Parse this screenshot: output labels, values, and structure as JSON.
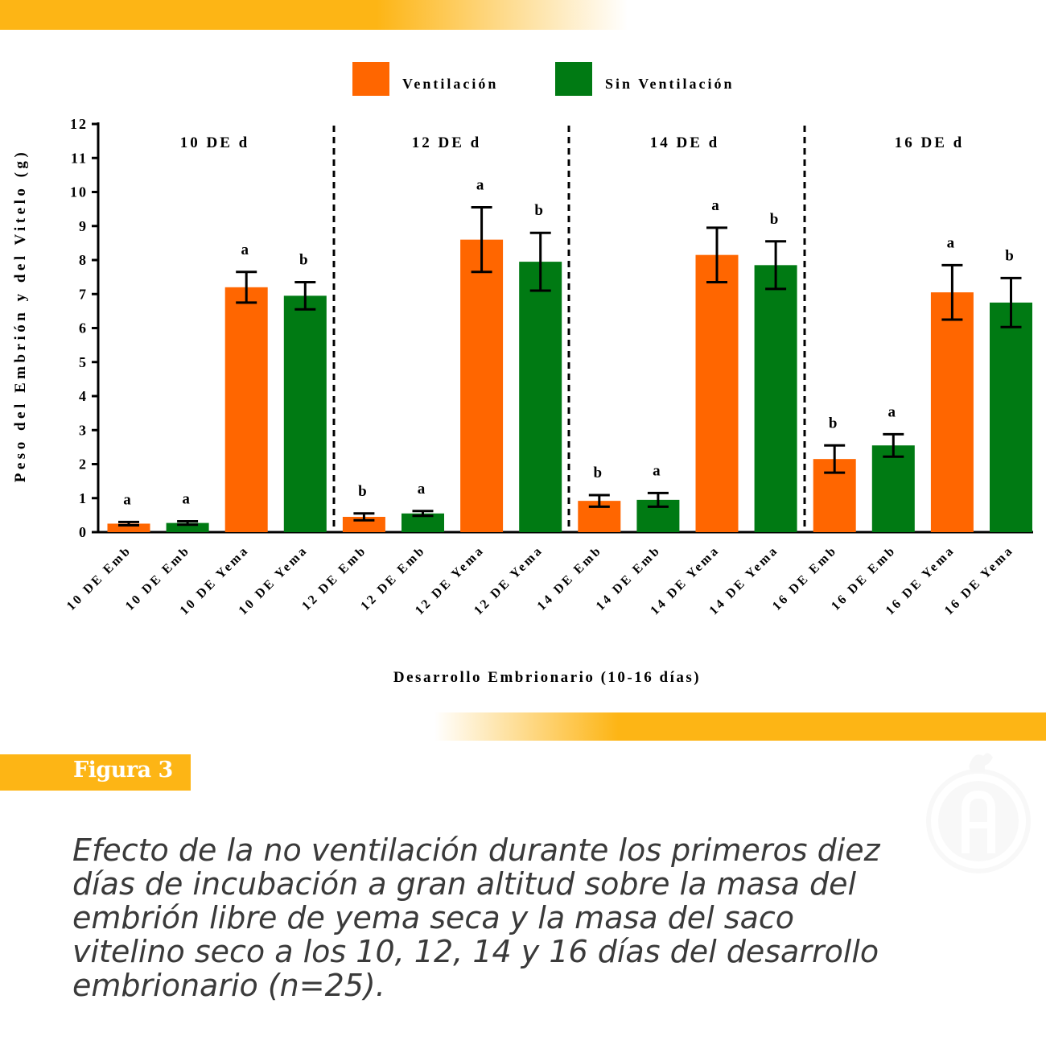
{
  "figure_label": "Figura 3",
  "caption": "Efecto de la no ventilación durante los primeros diez días de incubación a gran altitud sobre la masa del embrión libre de yema seca y la masa del saco vitelino seco a los 10, 12, 14 y 16 días del desarrollo embrionario (n=25).",
  "colors": {
    "accent": "#fdb515",
    "ventilacion": "#ff6600",
    "sin_ventilacion": "#007a13",
    "text": "#3a3a3a"
  },
  "logo_icon": "rooster-letter-a-logo-icon",
  "chart_data": {
    "type": "bar",
    "ylabel": "Peso del Embrión y del Vitelo (g)",
    "xlabel": "Desarrollo Embrionario (10-16 días)",
    "ylim": [
      0,
      12
    ],
    "yticks": [
      0,
      1,
      2,
      3,
      4,
      5,
      6,
      7,
      8,
      9,
      10,
      11,
      12
    ],
    "legend_position": "top",
    "grid": false,
    "legend": [
      {
        "name": "Ventilación",
        "color": "#ff6600"
      },
      {
        "name": "Sin Ventilación",
        "color": "#007a13"
      }
    ],
    "groups": [
      "10 DE d",
      "12 DE d",
      "14 DE d",
      "16 DE d"
    ],
    "bars": [
      {
        "category": "10 DE Emb",
        "series": "Ventilación",
        "value": 0.25,
        "error": 0.05,
        "letter": "a"
      },
      {
        "category": "10 DE Emb",
        "series": "Sin Ventilación",
        "value": 0.27,
        "error": 0.05,
        "letter": "a"
      },
      {
        "category": "10 DE Yema",
        "series": "Ventilación",
        "value": 7.2,
        "error": 0.45,
        "letter": "a"
      },
      {
        "category": "10 DE Yema",
        "series": "Sin Ventilación",
        "value": 6.95,
        "error": 0.4,
        "letter": "b"
      },
      {
        "category": "12 DE Emb",
        "series": "Ventilación",
        "value": 0.45,
        "error": 0.1,
        "letter": "b"
      },
      {
        "category": "12 DE Emb",
        "series": "Sin Ventilación",
        "value": 0.55,
        "error": 0.07,
        "letter": "a"
      },
      {
        "category": "12 DE Yema",
        "series": "Ventilación",
        "value": 8.6,
        "error": 0.95,
        "letter": "a"
      },
      {
        "category": "12 DE Yema",
        "series": "Sin Ventilación",
        "value": 7.95,
        "error": 0.85,
        "letter": "b"
      },
      {
        "category": "14 DE Emb",
        "series": "Ventilación",
        "value": 0.92,
        "error": 0.17,
        "letter": "b"
      },
      {
        "category": "14 DE Emb",
        "series": "Sin Ventilación",
        "value": 0.95,
        "error": 0.2,
        "letter": "a"
      },
      {
        "category": "14 DE Yema",
        "series": "Ventilación",
        "value": 8.15,
        "error": 0.8,
        "letter": "a"
      },
      {
        "category": "14 DE Yema",
        "series": "Sin Ventilación",
        "value": 7.85,
        "error": 0.7,
        "letter": "b"
      },
      {
        "category": "16 DE Emb",
        "series": "Ventilación",
        "value": 2.15,
        "error": 0.4,
        "letter": "b"
      },
      {
        "category": "16 DE Emb",
        "series": "Sin Ventilación",
        "value": 2.55,
        "error": 0.33,
        "letter": "a"
      },
      {
        "category": "16 DE Yema",
        "series": "Ventilación",
        "value": 7.05,
        "error": 0.8,
        "letter": "a"
      },
      {
        "category": "16 DE Yema",
        "series": "Sin Ventilación",
        "value": 6.75,
        "error": 0.72,
        "letter": "b"
      }
    ]
  }
}
